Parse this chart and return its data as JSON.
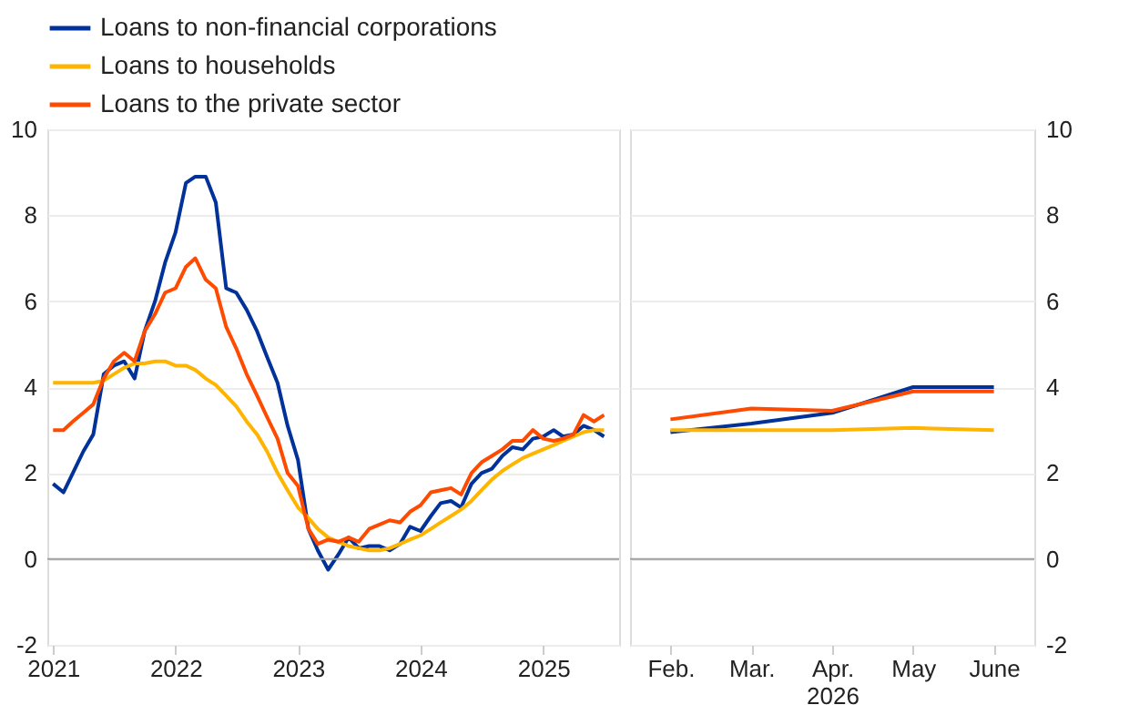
{
  "chart_data": [
    {
      "type": "line",
      "x": [
        "2021-01",
        "2021-02",
        "2021-03",
        "2021-04",
        "2021-05",
        "2021-06",
        "2021-07",
        "2021-08",
        "2021-09",
        "2021-10",
        "2021-11",
        "2021-12",
        "2022-01",
        "2022-02",
        "2022-03",
        "2022-04",
        "2022-05",
        "2022-06",
        "2022-07",
        "2022-08",
        "2022-09",
        "2022-10",
        "2022-11",
        "2022-12",
        "2023-01",
        "2023-02",
        "2023-03",
        "2023-04",
        "2023-05",
        "2023-06",
        "2023-07",
        "2023-08",
        "2023-09",
        "2023-10",
        "2023-11",
        "2023-12",
        "2024-01",
        "2024-02",
        "2024-03",
        "2024-04",
        "2024-05",
        "2024-06",
        "2024-07",
        "2024-08",
        "2024-09",
        "2024-10",
        "2024-11",
        "2024-12",
        "2025-01",
        "2025-02",
        "2025-03",
        "2025-04",
        "2025-05",
        "2025-06",
        "2025-07"
      ],
      "series": [
        {
          "name": "Loans to non-financial corporations",
          "color": "#003299",
          "values": [
            1.75,
            1.55,
            2.0,
            2.5,
            2.9,
            4.3,
            4.5,
            4.6,
            4.2,
            5.3,
            6.0,
            6.9,
            7.6,
            8.75,
            8.9,
            8.9,
            8.3,
            6.3,
            6.2,
            5.8,
            5.3,
            4.7,
            4.1,
            3.1,
            2.3,
            0.7,
            0.2,
            -0.25,
            0.1,
            0.5,
            0.25,
            0.3,
            0.3,
            0.2,
            0.35,
            0.75,
            0.65,
            1.0,
            1.3,
            1.35,
            1.2,
            1.75,
            2.0,
            2.1,
            2.4,
            2.6,
            2.55,
            2.8,
            2.85,
            3.0,
            2.85,
            2.9,
            3.1,
            3.0,
            2.85
          ]
        },
        {
          "name": "Loans to households",
          "color": "#ffb400",
          "values": [
            4.1,
            4.1,
            4.1,
            4.1,
            4.1,
            4.15,
            4.3,
            4.45,
            4.55,
            4.55,
            4.6,
            4.6,
            4.5,
            4.5,
            4.4,
            4.2,
            4.05,
            3.8,
            3.55,
            3.2,
            2.9,
            2.5,
            2.0,
            1.6,
            1.2,
            0.95,
            0.7,
            0.5,
            0.4,
            0.3,
            0.25,
            0.2,
            0.2,
            0.25,
            0.35,
            0.45,
            0.55,
            0.7,
            0.85,
            1.0,
            1.15,
            1.35,
            1.6,
            1.85,
            2.05,
            2.2,
            2.35,
            2.45,
            2.55,
            2.65,
            2.75,
            2.85,
            2.95,
            3.0,
            3.0
          ]
        },
        {
          "name": "Loans to the private sector",
          "color": "#ff4b00",
          "values": [
            3.0,
            3.0,
            3.2,
            3.4,
            3.6,
            4.2,
            4.6,
            4.8,
            4.6,
            5.3,
            5.7,
            6.2,
            6.3,
            6.8,
            7.0,
            6.5,
            6.3,
            5.4,
            4.9,
            4.3,
            3.8,
            3.3,
            2.8,
            2.0,
            1.7,
            0.7,
            0.35,
            0.45,
            0.4,
            0.5,
            0.4,
            0.7,
            0.8,
            0.9,
            0.85,
            1.1,
            1.25,
            1.55,
            1.6,
            1.65,
            1.5,
            2.0,
            2.25,
            2.4,
            2.55,
            2.75,
            2.75,
            3.0,
            2.8,
            2.75,
            2.8,
            2.9,
            3.35,
            3.2,
            3.35
          ]
        }
      ],
      "xlim": [
        "2020-12-15",
        "2025-08-15"
      ],
      "xticks": [
        "2021",
        "2022",
        "2023",
        "2024",
        "2025"
      ],
      "ylim": [
        -2,
        10
      ],
      "yticks": [
        -2,
        0,
        2,
        4,
        6,
        8,
        10
      ],
      "grid": "y",
      "legend": "top left",
      "ref_lines": [
        {
          "axis": "y",
          "value": 0,
          "color": "#a0a0a0"
        }
      ]
    },
    {
      "type": "line",
      "categories": [
        "Feb.",
        "Mar.",
        "Apr.",
        "May",
        "June"
      ],
      "xlabel": "2026",
      "series": [
        {
          "color": "#003299",
          "values": [
            2.95,
            3.15,
            3.4,
            4.0,
            4.0
          ]
        },
        {
          "color": "#ffb400",
          "values": [
            3.0,
            3.0,
            3.0,
            3.05,
            3.0
          ]
        },
        {
          "color": "#ff4b00",
          "values": [
            3.25,
            3.5,
            3.45,
            3.9,
            3.9
          ]
        }
      ],
      "ylim": [
        -2,
        10
      ],
      "yticks": [
        -2,
        0,
        2,
        4,
        6,
        8,
        10
      ],
      "grid": "y",
      "legend": false,
      "ref_lines": [
        {
          "axis": "y",
          "value": 0,
          "color": "#a0a0a0"
        }
      ]
    }
  ]
}
